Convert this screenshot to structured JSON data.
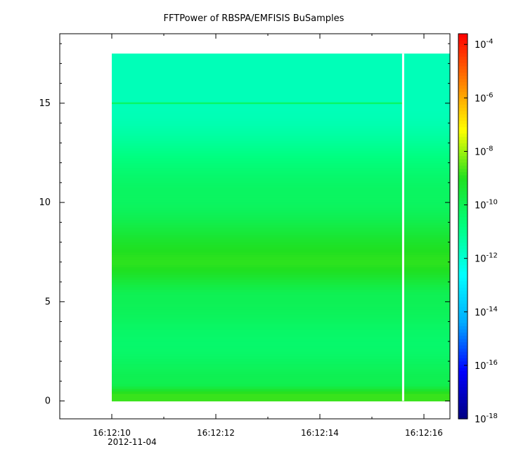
{
  "chart_data": {
    "type": "heatmap",
    "title": "FFTPower of RBSPA/EMFISIS  BuSamples",
    "xlabel": "",
    "ylabel": "",
    "x_range": [
      "16:12:09.0",
      "16:12:16.5"
    ],
    "x_data_extent": [
      "16:12:10.0",
      "16:12:16.5"
    ],
    "x_tick_labels": [
      "16:12:10",
      "16:12:12",
      "16:12:14",
      "16:12:16"
    ],
    "x_date_label": "2012-11-04",
    "data_gap_at": "16:12:15.6",
    "ylim": [
      -0.9,
      18.5
    ],
    "y_data_extent": [
      0,
      17.5
    ],
    "y_ticks": [
      0,
      5,
      10,
      15
    ],
    "y_scale": "linear",
    "colorbar": {
      "scale": "log",
      "range_exponents": [
        -18,
        -3.6
      ],
      "tick_exponents": [
        -18,
        -16,
        -14,
        -12,
        -10,
        -8,
        -6,
        -4
      ],
      "colormap": [
        "#000080",
        "#0000ff",
        "#00aaff",
        "#00ffff",
        "#00ff80",
        "#20e020",
        "#ffff00",
        "#ff8000",
        "#ff0000"
      ]
    },
    "bands_log_power": [
      {
        "freq_range": [
          0,
          0.6
        ],
        "log_power": -8.8
      },
      {
        "freq_range": [
          0.6,
          1.2
        ],
        "log_power": -9.9
      },
      {
        "freq_range": [
          1.2,
          4.5
        ],
        "log_power": -10.4
      },
      {
        "freq_range": [
          4.5,
          5.8
        ],
        "log_power": -10.0
      },
      {
        "freq_range": [
          5.8,
          8.2
        ],
        "log_power": -8.9
      },
      {
        "freq_range": [
          8.2,
          12.2
        ],
        "log_power": -10.2
      },
      {
        "freq_range": [
          12.2,
          17.5
        ],
        "log_power": -11.6
      }
    ],
    "line_feature": {
      "freq": 15,
      "log_power": -10.3
    },
    "grid": false,
    "legend": "colorbar-right"
  }
}
